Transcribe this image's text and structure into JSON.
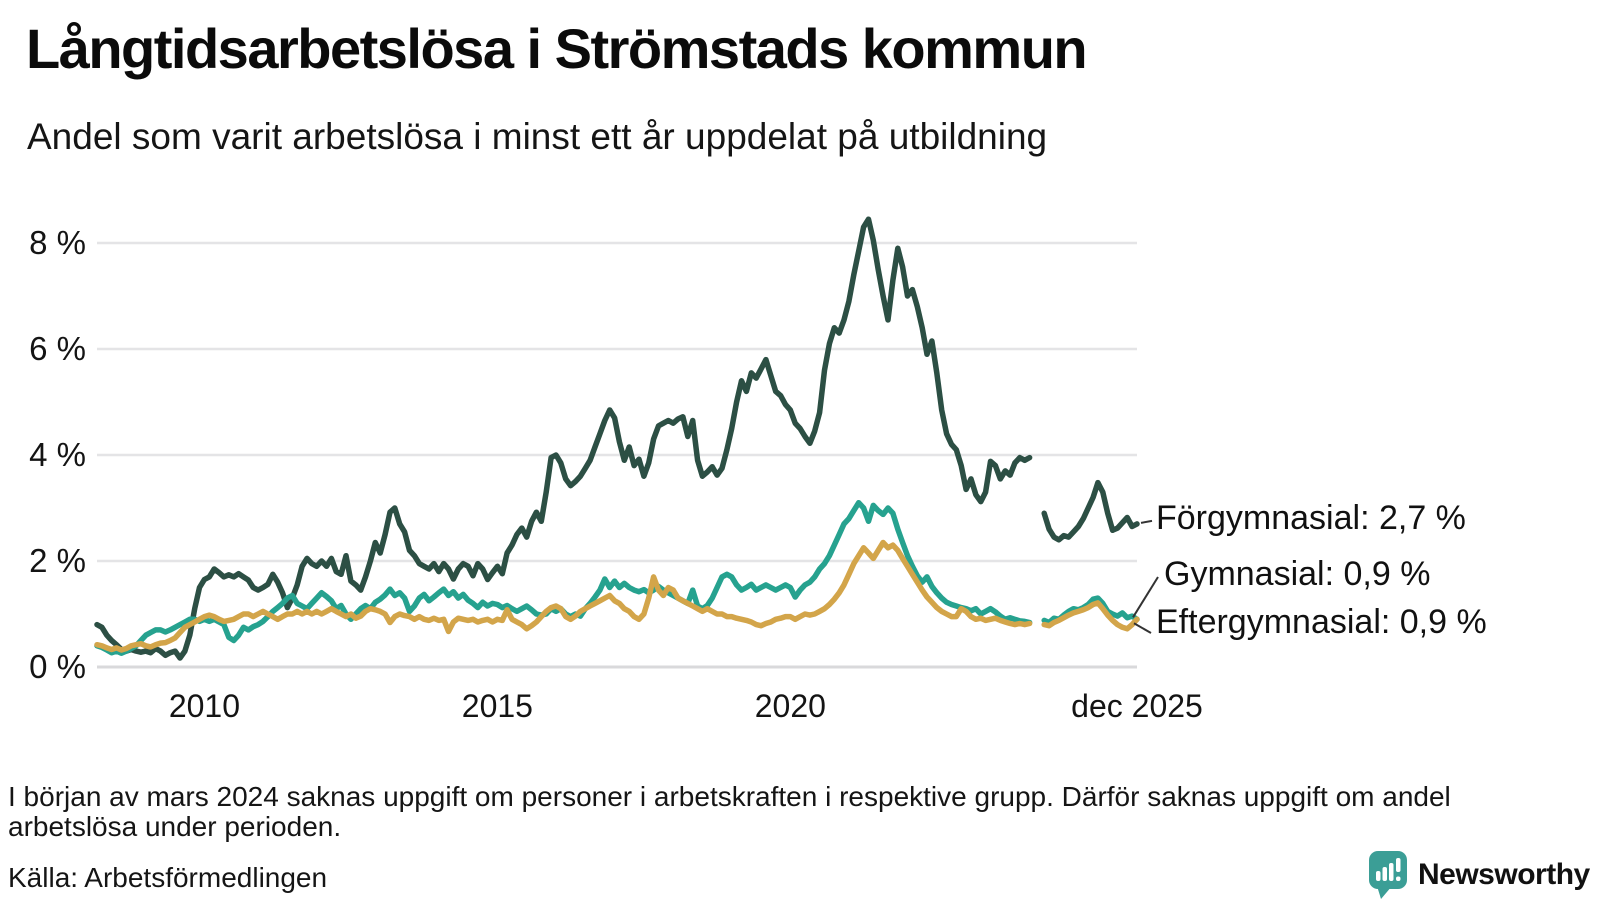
{
  "header": {
    "title": "Långtidsarbetslösa i Strömstads kommun",
    "subtitle": "Andel som varit arbetslösa i minst ett år uppdelat på utbildning"
  },
  "chart_data": {
    "type": "line",
    "unit": "%",
    "x_start": "2008-03",
    "x_end": "2025-12",
    "x_frequency": "monthly",
    "gap_months": [
      "2024-03",
      "2024-04"
    ],
    "ylim": [
      0,
      8.8
    ],
    "grid": true,
    "grid_color": "#e4e4e6",
    "baseline_color": "#d9d9db",
    "y_ticks": [
      {
        "label": "0 %",
        "value": 0
      },
      {
        "label": "2 %",
        "value": 2
      },
      {
        "label": "4 %",
        "value": 4
      },
      {
        "label": "6 %",
        "value": 6
      },
      {
        "label": "8 %",
        "value": 8
      }
    ],
    "x_ticks": [
      {
        "label": "2010",
        "index": 22
      },
      {
        "label": "2015",
        "index": 82
      },
      {
        "label": "2020",
        "index": 142
      },
      {
        "label": "dec 2025",
        "index": 213
      }
    ],
    "series": [
      {
        "name": "Förgymnasial",
        "label": "Förgymnasial: 2,7 %",
        "end_value": "2,7 %",
        "color": "#2c4f44",
        "values": [
          0.8,
          0.75,
          0.6,
          0.5,
          0.42,
          0.33,
          0.3,
          0.33,
          0.3,
          0.28,
          0.3,
          0.27,
          0.35,
          0.3,
          0.22,
          0.27,
          0.3,
          0.17,
          0.3,
          0.6,
          1.1,
          1.5,
          1.65,
          1.7,
          1.85,
          1.78,
          1.7,
          1.74,
          1.7,
          1.76,
          1.7,
          1.64,
          1.5,
          1.45,
          1.5,
          1.56,
          1.75,
          1.6,
          1.4,
          1.12,
          1.3,
          1.55,
          1.9,
          2.05,
          1.95,
          1.9,
          2.0,
          1.9,
          2.05,
          1.8,
          1.75,
          2.1,
          1.62,
          1.55,
          1.45,
          1.7,
          2.0,
          2.35,
          2.15,
          2.5,
          2.92,
          3.0,
          2.7,
          2.55,
          2.2,
          2.1,
          1.95,
          1.9,
          1.85,
          1.95,
          1.8,
          1.95,
          1.85,
          1.66,
          1.85,
          1.95,
          1.9,
          1.72,
          1.95,
          1.85,
          1.65,
          1.78,
          1.9,
          1.76,
          2.15,
          2.3,
          2.5,
          2.62,
          2.45,
          2.75,
          2.92,
          2.75,
          3.3,
          3.95,
          4.0,
          3.85,
          3.55,
          3.42,
          3.5,
          3.6,
          3.75,
          3.9,
          4.15,
          4.4,
          4.65,
          4.85,
          4.7,
          4.25,
          3.9,
          4.15,
          3.8,
          3.92,
          3.6,
          3.85,
          4.3,
          4.55,
          4.6,
          4.65,
          4.6,
          4.68,
          4.72,
          4.35,
          4.65,
          3.9,
          3.6,
          3.68,
          3.78,
          3.62,
          3.75,
          4.1,
          4.5,
          5.0,
          5.4,
          5.2,
          5.55,
          5.45,
          5.62,
          5.8,
          5.5,
          5.2,
          5.12,
          4.95,
          4.85,
          4.6,
          4.5,
          4.35,
          4.22,
          4.45,
          4.8,
          5.6,
          6.1,
          6.4,
          6.3,
          6.55,
          6.9,
          7.4,
          7.85,
          8.3,
          8.45,
          8.05,
          7.5,
          7.0,
          6.55,
          7.3,
          7.9,
          7.55,
          7.0,
          7.12,
          6.8,
          6.4,
          5.9,
          6.15,
          5.55,
          4.85,
          4.4,
          4.2,
          4.1,
          3.8,
          3.35,
          3.55,
          3.25,
          3.12,
          3.3,
          3.88,
          3.8,
          3.55,
          3.7,
          3.62,
          3.85,
          3.95,
          3.9,
          3.95,
          null,
          null,
          2.9,
          2.6,
          2.45,
          2.4,
          2.48,
          2.45,
          2.55,
          2.65,
          2.8,
          3.0,
          3.2,
          3.48,
          3.3,
          2.9,
          2.58,
          2.62,
          2.72,
          2.82,
          2.65,
          2.7
        ]
      },
      {
        "name": "Gymnasial",
        "label": "Gymnasial: 0,9 %",
        "end_value": "0,9 %",
        "color": "#26a28f",
        "values": [
          0.4,
          0.37,
          0.32,
          0.27,
          0.3,
          0.26,
          0.3,
          0.35,
          0.4,
          0.5,
          0.6,
          0.65,
          0.7,
          0.7,
          0.66,
          0.7,
          0.75,
          0.8,
          0.85,
          0.9,
          0.9,
          0.86,
          0.9,
          0.86,
          0.9,
          0.85,
          0.8,
          0.56,
          0.5,
          0.6,
          0.75,
          0.7,
          0.76,
          0.8,
          0.86,
          0.95,
          1.05,
          1.12,
          1.2,
          1.3,
          1.35,
          1.2,
          1.15,
          1.1,
          1.2,
          1.3,
          1.4,
          1.33,
          1.25,
          1.1,
          1.16,
          1.0,
          0.9,
          1.0,
          1.1,
          1.16,
          1.1,
          1.22,
          1.28,
          1.36,
          1.47,
          1.35,
          1.4,
          1.3,
          1.05,
          1.15,
          1.3,
          1.37,
          1.25,
          1.32,
          1.4,
          1.47,
          1.35,
          1.42,
          1.3,
          1.37,
          1.26,
          1.2,
          1.12,
          1.22,
          1.15,
          1.2,
          1.18,
          1.12,
          1.16,
          1.1,
          1.05,
          1.1,
          1.15,
          1.08,
          1.0,
          0.98,
          1.0,
          1.1,
          1.05,
          1.1,
          1.0,
          0.95,
          1.0,
          0.96,
          1.1,
          1.2,
          1.32,
          1.45,
          1.66,
          1.5,
          1.62,
          1.5,
          1.58,
          1.5,
          1.45,
          1.42,
          1.46,
          1.4,
          1.45,
          1.52,
          1.45,
          1.4,
          1.35,
          1.3,
          1.25,
          1.2,
          1.45,
          1.15,
          1.1,
          1.16,
          1.3,
          1.5,
          1.7,
          1.75,
          1.7,
          1.55,
          1.45,
          1.5,
          1.56,
          1.45,
          1.5,
          1.55,
          1.5,
          1.45,
          1.5,
          1.55,
          1.5,
          1.32,
          1.45,
          1.55,
          1.6,
          1.7,
          1.85,
          1.95,
          2.1,
          2.3,
          2.5,
          2.7,
          2.8,
          2.95,
          3.1,
          3.0,
          2.75,
          3.05,
          2.95,
          2.88,
          3.0,
          2.9,
          2.6,
          2.35,
          2.1,
          1.9,
          1.72,
          1.6,
          1.7,
          1.52,
          1.4,
          1.3,
          1.22,
          1.18,
          1.15,
          1.12,
          1.1,
          1.06,
          1.1,
          1.0,
          1.05,
          1.1,
          1.04,
          0.96,
          0.9,
          0.93,
          0.9,
          0.87,
          0.86,
          0.84,
          null,
          null,
          0.88,
          0.84,
          0.92,
          0.9,
          0.98,
          1.05,
          1.1,
          1.08,
          1.12,
          1.18,
          1.28,
          1.3,
          1.2,
          1.05,
          1.0,
          0.96,
          1.02,
          0.93,
          0.96,
          0.9
        ]
      },
      {
        "name": "Eftergymnasial",
        "label": "Eftergymnasial: 0,9 %",
        "end_value": "0,9 %",
        "color": "#d3a54a",
        "values": [
          0.42,
          0.4,
          0.36,
          0.33,
          0.36,
          0.32,
          0.35,
          0.4,
          0.42,
          0.44,
          0.4,
          0.38,
          0.42,
          0.45,
          0.46,
          0.5,
          0.55,
          0.65,
          0.75,
          0.8,
          0.85,
          0.9,
          0.95,
          0.98,
          0.95,
          0.9,
          0.86,
          0.88,
          0.9,
          0.95,
          1.0,
          1.0,
          0.95,
          1.0,
          1.05,
          1.0,
          0.95,
          0.9,
          0.95,
          1.0,
          1.0,
          1.05,
          1.0,
          1.05,
          1.0,
          1.05,
          1.0,
          1.05,
          1.1,
          1.05,
          1.0,
          0.95,
          1.0,
          0.92,
          0.96,
          1.05,
          1.1,
          1.08,
          1.05,
          1.0,
          0.84,
          0.95,
          1.0,
          0.97,
          0.95,
          0.9,
          0.95,
          0.9,
          0.88,
          0.92,
          0.88,
          0.9,
          0.67,
          0.85,
          0.92,
          0.9,
          0.88,
          0.9,
          0.85,
          0.88,
          0.9,
          0.85,
          0.9,
          0.88,
          1.08,
          0.9,
          0.85,
          0.8,
          0.72,
          0.78,
          0.85,
          0.95,
          1.05,
          1.12,
          1.15,
          1.1,
          0.95,
          0.9,
          0.96,
          1.05,
          1.1,
          1.15,
          1.2,
          1.25,
          1.3,
          1.35,
          1.25,
          1.2,
          1.1,
          1.05,
          0.95,
          0.9,
          1.0,
          1.3,
          1.7,
          1.45,
          1.35,
          1.5,
          1.45,
          1.3,
          1.25,
          1.2,
          1.15,
          1.1,
          1.05,
          1.1,
          1.05,
          1.0,
          1.0,
          0.95,
          0.95,
          0.92,
          0.9,
          0.88,
          0.85,
          0.8,
          0.78,
          0.82,
          0.85,
          0.9,
          0.92,
          0.95,
          0.95,
          0.9,
          0.95,
          1.0,
          0.98,
          1.0,
          1.05,
          1.1,
          1.18,
          1.28,
          1.4,
          1.55,
          1.75,
          1.95,
          2.1,
          2.25,
          2.15,
          2.05,
          2.2,
          2.35,
          2.25,
          2.3,
          2.2,
          2.05,
          1.9,
          1.75,
          1.6,
          1.45,
          1.32,
          1.22,
          1.12,
          1.05,
          1.0,
          0.95,
          0.95,
          1.1,
          1.05,
          0.95,
          0.9,
          0.92,
          0.88,
          0.9,
          0.92,
          0.88,
          0.85,
          0.82,
          0.8,
          0.82,
          0.8,
          0.82,
          null,
          null,
          0.8,
          0.78,
          0.84,
          0.88,
          0.93,
          0.98,
          1.02,
          1.05,
          1.08,
          1.12,
          1.18,
          1.21,
          1.1,
          0.98,
          0.88,
          0.8,
          0.75,
          0.72,
          0.8,
          0.9
        ]
      }
    ]
  },
  "footnote": {
    "text": "I början av mars 2024 saknas uppgift om personer i arbetskraften i respektive grupp. Därför saknas uppgift om andel arbetslösa under perioden."
  },
  "source": {
    "label": "Källa: Arbetsförmedlingen"
  },
  "logo": {
    "text": "Newsworthy",
    "icon_color": "#3b9e96",
    "text_color": "#2e948c"
  }
}
